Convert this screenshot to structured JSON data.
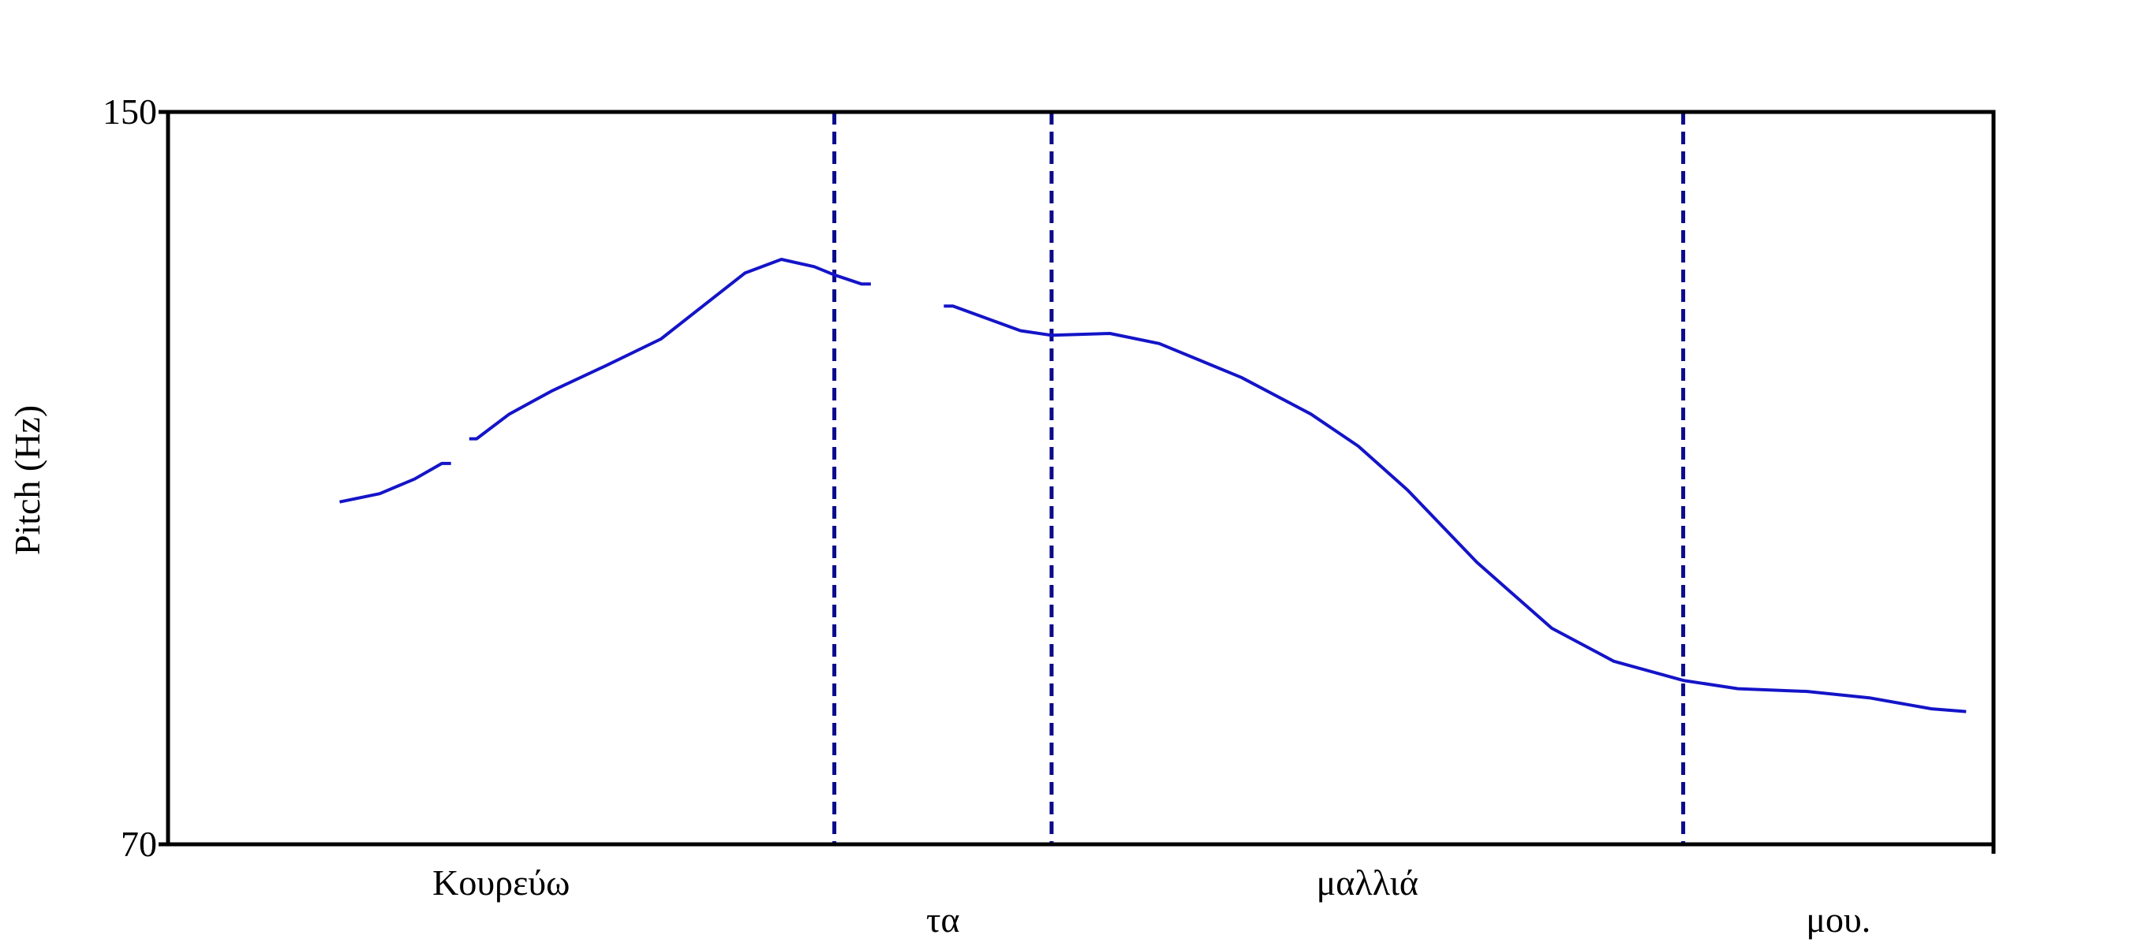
{
  "chart_data": {
    "type": "line",
    "y_label": "Pitch (Hz)",
    "x": [
      0.094,
      0.116,
      0.135,
      0.15,
      0.155,
      null,
      0.165,
      0.169,
      0.187,
      0.21,
      0.24,
      0.27,
      0.293,
      0.316,
      0.336,
      0.354,
      0.365,
      0.38,
      0.385,
      null,
      0.425,
      0.43,
      0.467,
      0.484,
      0.516,
      0.543,
      0.588,
      0.626,
      0.652,
      0.679,
      0.717,
      0.758,
      0.792,
      0.83,
      0.86,
      0.898,
      0.932,
      0.966,
      0.985
    ],
    "series": [
      {
        "color": "#1414c8",
        "values": [
          107.4,
          108.3,
          109.9,
          111.6,
          111.6,
          null,
          114.3,
          114.3,
          117.0,
          119.5,
          122.3,
          125.2,
          128.8,
          132.4,
          133.9,
          133.1,
          132.2,
          131.2,
          131.2,
          null,
          128.8,
          128.8,
          126.1,
          125.6,
          125.8,
          124.7,
          121.0,
          117.0,
          113.5,
          108.7,
          100.8,
          93.6,
          90.0,
          87.9,
          87.0,
          86.7,
          86.0,
          84.8,
          84.5
        ]
      }
    ],
    "xlim": [
      0,
      1
    ],
    "ylim": [
      70,
      150
    ],
    "yticks": [
      70,
      150
    ],
    "words": [
      "Κουρεύω",
      "τα",
      "μαλλιά",
      "μου."
    ],
    "boundaries": [
      0.365,
      0.484,
      0.83
    ],
    "boundary_color": "#0a0a8c"
  }
}
